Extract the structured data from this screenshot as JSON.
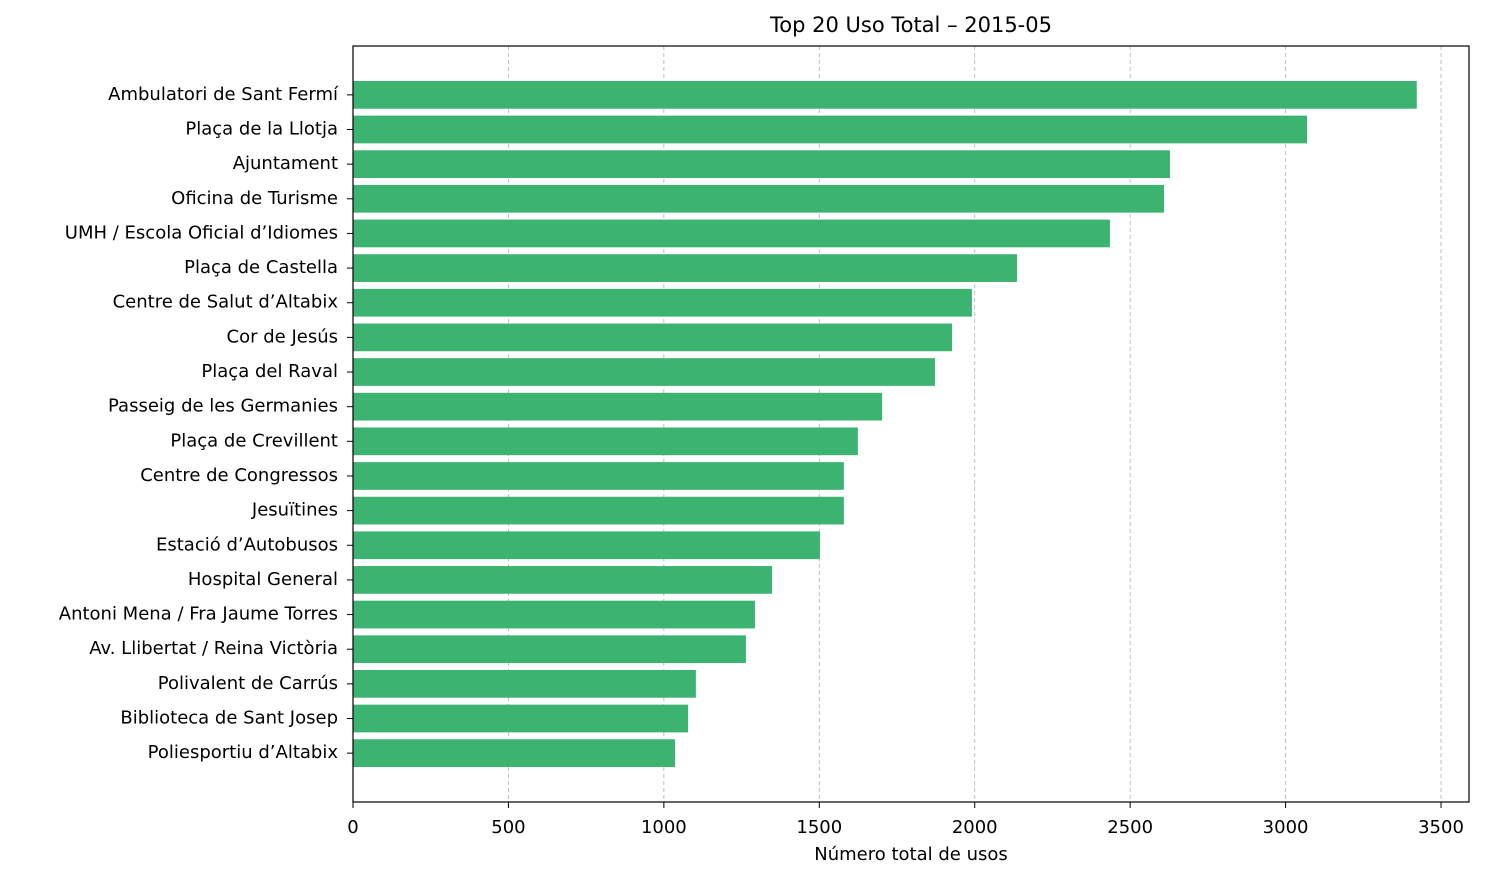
{
  "chart_data": {
    "type": "barh",
    "title": "Top 20 Uso Total – 2015-05",
    "xlabel": "Número total de usos",
    "categories": [
      "Ambulatori de Sant Fermí",
      "Plaça de la Llotja",
      "Ajuntament",
      "Oficina de Turisme",
      "UMH / Escola Oficial d’Idiomes",
      "Plaça de Castella",
      "Centre de Salut d’Altabix",
      "Cor de Jesús",
      "Plaça del Raval",
      "Passeig de les Germanies",
      "Plaça de Crevillent",
      "Centre de Congressos",
      "Jesuïtines",
      "Estació d’Autobusos",
      "Hospital General",
      "Antoni Mena / Fra Jaume Torres",
      "Av. Llibertat / Reina Victòria",
      "Polivalent de Carrús",
      "Biblioteca de Sant Josep",
      "Poliesportiu d’Altabix"
    ],
    "values": [
      3422,
      3069,
      2628,
      2609,
      2435,
      2136,
      1991,
      1927,
      1872,
      1702,
      1624,
      1579,
      1579,
      1502,
      1348,
      1293,
      1264,
      1103,
      1078,
      1036
    ],
    "color": "#3cb371",
    "xlim": [
      0,
      3590
    ],
    "xticks": [
      0,
      500,
      1000,
      1500,
      2000,
      2500,
      3000,
      3500
    ],
    "grid": true
  }
}
